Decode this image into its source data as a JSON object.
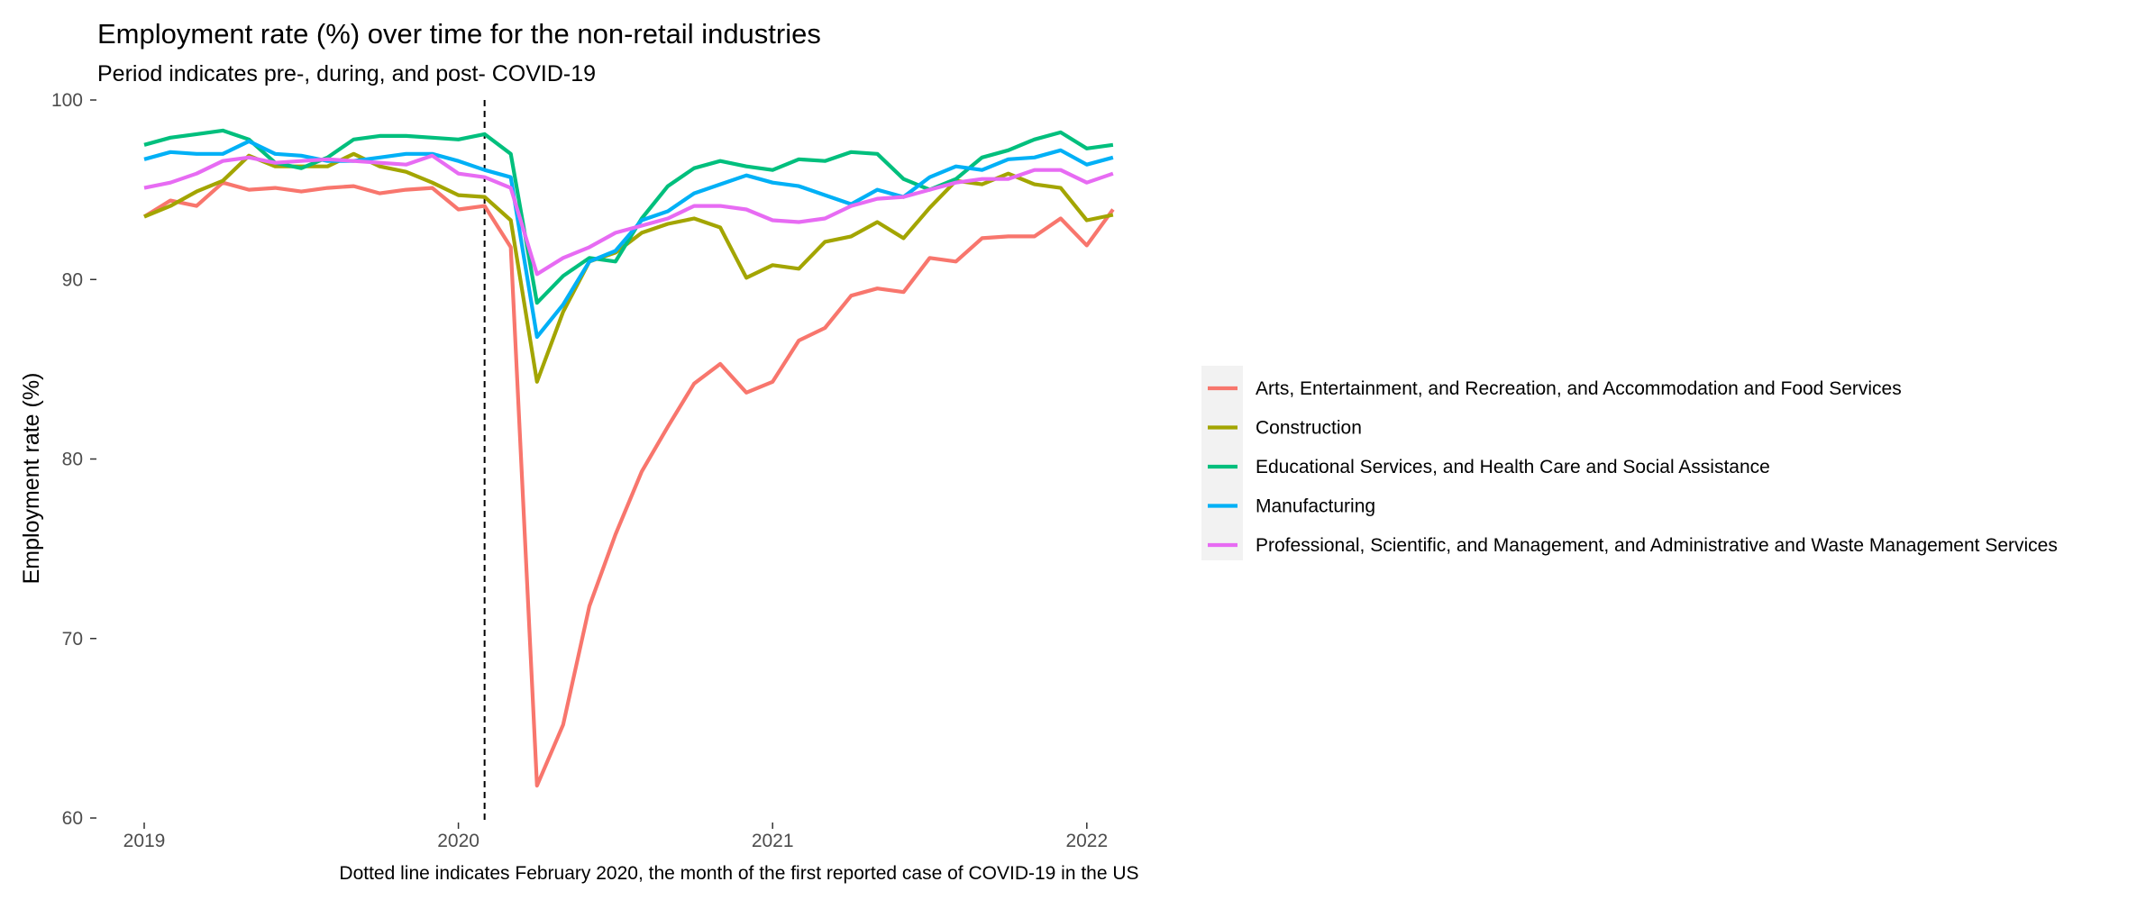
{
  "chart_data": {
    "type": "line",
    "title": "Employment rate (%) over time for the non-retail industries",
    "subtitle": "Period indicates pre-, during, and post- COVID-19",
    "xlabel": "",
    "ylabel": "Employment rate (%)",
    "caption": "Dotted line indicates February 2020, the month of the first reported case of COVID-19 in the US",
    "ylim": [
      60,
      100
    ],
    "y_ticks": [
      60,
      70,
      80,
      90,
      100
    ],
    "x_ticks": [
      "2019",
      "2020",
      "2021",
      "2022"
    ],
    "grid": false,
    "legend_position": "right",
    "reference_line": {
      "x": "2020-02",
      "style": "dashed"
    },
    "x": [
      "2019-01",
      "2019-02",
      "2019-03",
      "2019-04",
      "2019-05",
      "2019-06",
      "2019-07",
      "2019-08",
      "2019-09",
      "2019-10",
      "2019-11",
      "2019-12",
      "2020-01",
      "2020-02",
      "2020-03",
      "2020-04",
      "2020-05",
      "2020-06",
      "2020-07",
      "2020-08",
      "2020-09",
      "2020-10",
      "2020-11",
      "2020-12",
      "2021-01",
      "2021-02",
      "2021-03",
      "2021-04",
      "2021-05",
      "2021-06",
      "2021-07",
      "2021-08",
      "2021-09",
      "2021-10",
      "2021-11",
      "2021-12",
      "2022-01",
      "2022-02"
    ],
    "series": [
      {
        "name": "Arts, Entertainment, and Recreation, and Accommodation and Food Services",
        "color": "#F8766D",
        "values": [
          93.5,
          94.4,
          94.1,
          95.4,
          95.0,
          95.1,
          94.9,
          95.1,
          95.2,
          94.8,
          95.0,
          95.1,
          93.9,
          94.1,
          91.8,
          61.8,
          65.2,
          71.8,
          75.8,
          79.3,
          81.8,
          84.2,
          85.3,
          83.7,
          84.3,
          86.6,
          87.3,
          89.1,
          89.5,
          89.3,
          91.2,
          91.0,
          92.3,
          92.4,
          92.4,
          93.4,
          91.9,
          93.9
        ]
      },
      {
        "name": "Construction",
        "color": "#A3A500",
        "values": [
          93.5,
          94.1,
          94.9,
          95.5,
          96.9,
          96.3,
          96.3,
          96.3,
          97.0,
          96.3,
          96.0,
          95.4,
          94.7,
          94.6,
          93.3,
          84.3,
          88.2,
          91.0,
          91.5,
          92.6,
          93.1,
          93.4,
          92.9,
          90.1,
          90.8,
          90.6,
          92.1,
          92.4,
          93.2,
          92.3,
          94.0,
          95.5,
          95.3,
          95.9,
          95.3,
          95.1,
          93.3,
          93.6
        ]
      },
      {
        "name": "Educational Services, and Health Care and Social Assistance",
        "color": "#00BF7D",
        "values": [
          97.5,
          97.9,
          98.1,
          98.3,
          97.8,
          96.5,
          96.2,
          96.8,
          97.8,
          98.0,
          98.0,
          97.9,
          97.8,
          98.1,
          97.0,
          88.7,
          90.2,
          91.2,
          91.0,
          93.4,
          95.2,
          96.2,
          96.6,
          96.3,
          96.1,
          96.7,
          96.6,
          97.1,
          97.0,
          95.6,
          95.0,
          95.6,
          96.8,
          97.2,
          97.8,
          98.2,
          97.3,
          97.5
        ]
      },
      {
        "name": "Manufacturing",
        "color": "#00B0F6",
        "values": [
          96.7,
          97.1,
          97.0,
          97.0,
          97.7,
          97.0,
          96.9,
          96.6,
          96.6,
          96.8,
          97.0,
          97.0,
          96.6,
          96.1,
          95.7,
          86.8,
          88.6,
          91.0,
          91.6,
          93.3,
          93.8,
          94.8,
          95.3,
          95.8,
          95.4,
          95.2,
          94.7,
          94.2,
          95.0,
          94.6,
          95.7,
          96.3,
          96.1,
          96.7,
          96.8,
          97.2,
          96.4,
          96.8
        ]
      },
      {
        "name": "Professional, Scientific, and Management, and Administrative and Waste Management Services",
        "color": "#E76BF3",
        "values": [
          95.1,
          95.4,
          95.9,
          96.6,
          96.8,
          96.5,
          96.6,
          96.7,
          96.6,
          96.5,
          96.4,
          96.9,
          95.9,
          95.7,
          95.1,
          90.3,
          91.2,
          91.8,
          92.6,
          93.0,
          93.4,
          94.1,
          94.1,
          93.9,
          93.3,
          93.2,
          93.4,
          94.1,
          94.5,
          94.6,
          95.0,
          95.4,
          95.6,
          95.6,
          96.1,
          96.1,
          95.4,
          95.9
        ]
      }
    ]
  }
}
